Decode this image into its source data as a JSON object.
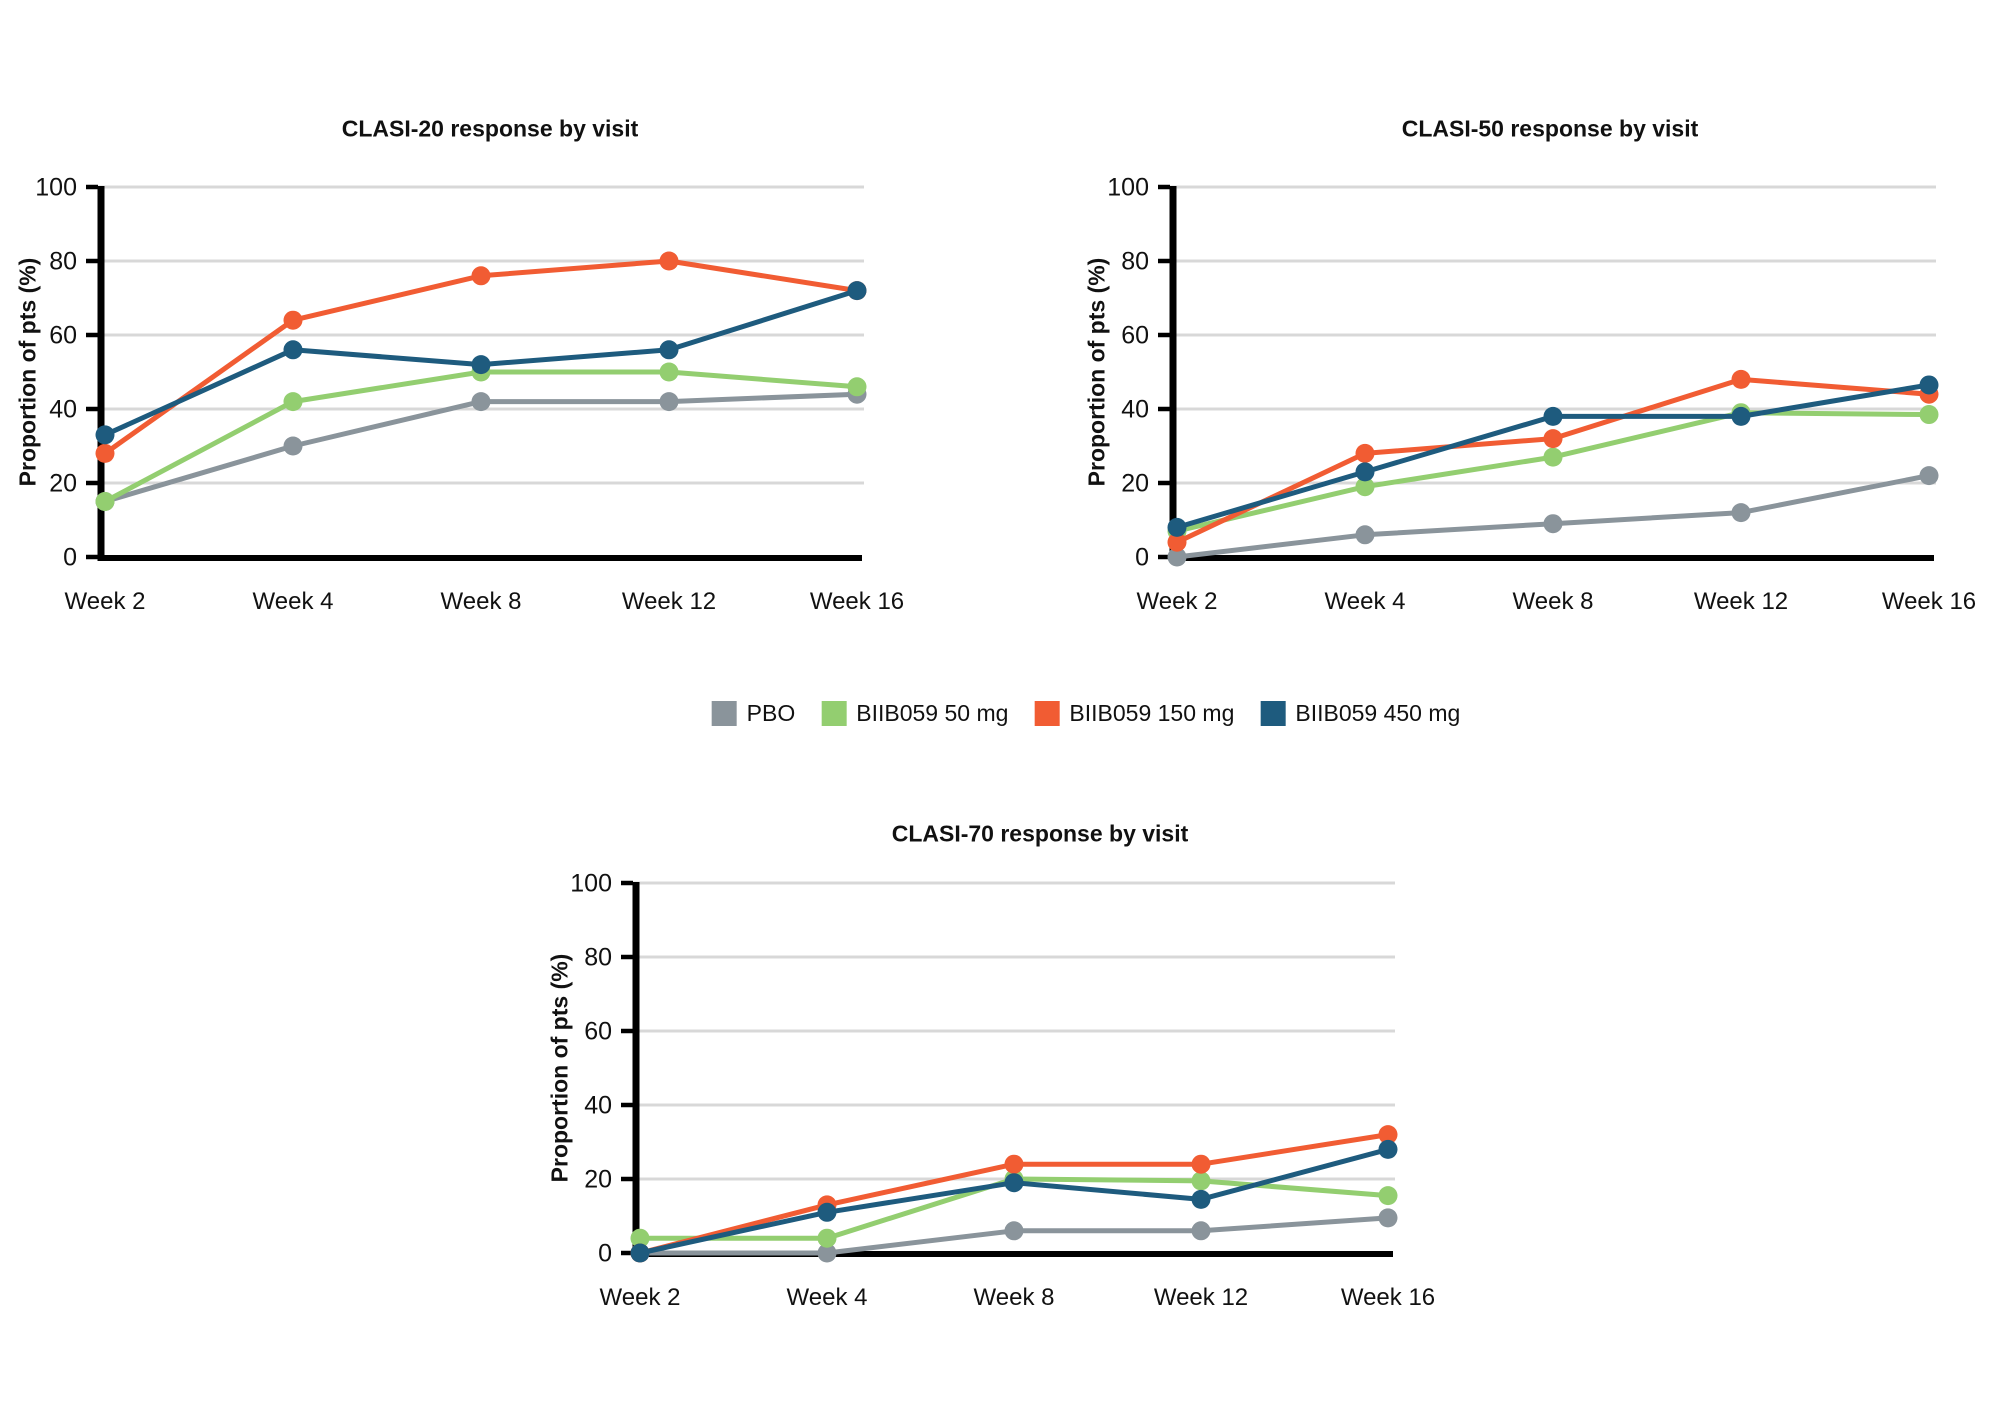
{
  "page": {
    "background": "#ffffff"
  },
  "legend": {
    "items": [
      {
        "label": "PBO",
        "color": "#8A949B"
      },
      {
        "label": "BIIB059 50 mg",
        "color": "#93CE70"
      },
      {
        "label": "BIIB059 150 mg",
        "color": "#F15C33"
      },
      {
        "label": "BIIB059 450 mg",
        "color": "#1E5B7E"
      }
    ]
  },
  "chart_data": [
    {
      "type": "line",
      "title": "CLASI-20 response by visit",
      "xlabel": "",
      "ylabel": "Proportion of pts (%)",
      "categories": [
        "Week 2",
        "Week 4",
        "Week 8",
        "Week 12",
        "Week 16"
      ],
      "ylim": [
        0,
        100
      ],
      "yticks": [
        0,
        20,
        40,
        60,
        80,
        100
      ],
      "grid": true,
      "legend_position": "shared-centered-below-top-row",
      "series": [
        {
          "name": "PBO",
          "color": "#8A949B",
          "values": [
            15,
            30,
            42,
            42,
            44
          ]
        },
        {
          "name": "BIIB059 50 mg",
          "color": "#93CE70",
          "values": [
            15,
            42,
            50,
            50,
            46
          ]
        },
        {
          "name": "BIIB059 150 mg",
          "color": "#F15C33",
          "values": [
            28,
            64,
            76,
            80,
            72
          ]
        },
        {
          "name": "BIIB059 450 mg",
          "color": "#1E5B7E",
          "values": [
            33,
            56,
            52,
            56,
            72
          ]
        }
      ]
    },
    {
      "type": "line",
      "title": "CLASI-50 response by visit",
      "xlabel": "",
      "ylabel": "Proportion of pts (%)",
      "categories": [
        "Week 2",
        "Week 4",
        "Week 8",
        "Week 12",
        "Week 16"
      ],
      "ylim": [
        0,
        100
      ],
      "yticks": [
        0,
        20,
        40,
        60,
        80,
        100
      ],
      "grid": true,
      "legend_position": "shared-centered-below-top-row",
      "series": [
        {
          "name": "PBO",
          "color": "#8A949B",
          "values": [
            0,
            6,
            9,
            12,
            22
          ]
        },
        {
          "name": "BIIB059 50 mg",
          "color": "#93CE70",
          "values": [
            7,
            19,
            27,
            39,
            38.5
          ]
        },
        {
          "name": "BIIB059 150 mg",
          "color": "#F15C33",
          "values": [
            4,
            28,
            32,
            48,
            44
          ]
        },
        {
          "name": "BIIB059 450 mg",
          "color": "#1E5B7E",
          "values": [
            8,
            23,
            38,
            38,
            46.5
          ]
        }
      ]
    },
    {
      "type": "line",
      "title": "CLASI-70 response by visit",
      "xlabel": "",
      "ylabel": "Proportion of pts (%)",
      "categories": [
        "Week 2",
        "Week 4",
        "Week 8",
        "Week 12",
        "Week 16"
      ],
      "ylim": [
        0,
        100
      ],
      "yticks": [
        0,
        20,
        40,
        60,
        80,
        100
      ],
      "grid": true,
      "legend_position": "shared-centered-below-top-row",
      "series": [
        {
          "name": "PBO",
          "color": "#8A949B",
          "values": [
            0,
            0,
            6,
            6,
            9.5
          ]
        },
        {
          "name": "BIIB059 50 mg",
          "color": "#93CE70",
          "values": [
            4,
            4,
            20,
            19.5,
            15.5
          ]
        },
        {
          "name": "BIIB059 150 mg",
          "color": "#F15C33",
          "values": [
            0,
            13,
            24,
            24,
            32
          ]
        },
        {
          "name": "BIIB059 450 mg",
          "color": "#1E5B7E",
          "values": [
            0,
            11,
            19,
            14.5,
            28
          ]
        }
      ]
    }
  ]
}
